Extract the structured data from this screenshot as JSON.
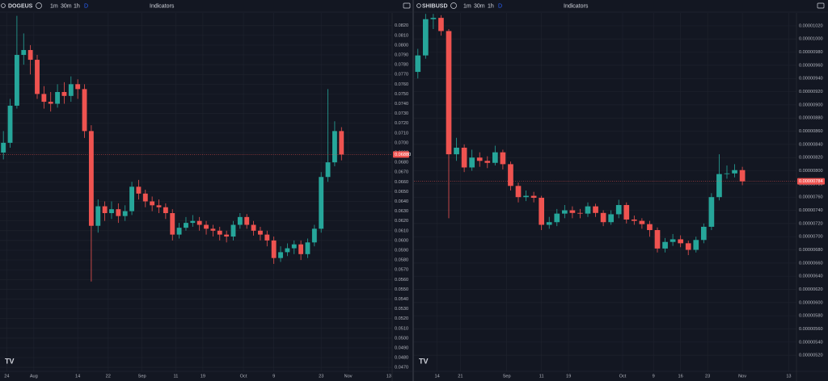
{
  "chart_data": [
    {
      "type": "candlestick",
      "toolbar": {
        "symbol": "DOGEUS",
        "intervals": [
          "1m",
          "30m",
          "1h"
        ],
        "selected": "D",
        "indicators": "Indicators"
      },
      "up_color": "#26a69a",
      "down_color": "#ef5350",
      "grid": true,
      "xlim": [
        -1,
        115
      ],
      "xticks": [
        {
          "value": 1,
          "label": "24"
        },
        {
          "value": 9,
          "label": "Aug"
        },
        {
          "value": 22,
          "label": "14"
        },
        {
          "value": 31,
          "label": "22"
        },
        {
          "value": 41,
          "label": "Sep"
        },
        {
          "value": 51,
          "label": "11"
        },
        {
          "value": 59,
          "label": "19"
        },
        {
          "value": 71,
          "label": "Oct"
        },
        {
          "value": 80,
          "label": "9"
        },
        {
          "value": 94,
          "label": "23"
        },
        {
          "value": 102,
          "label": "Nov"
        },
        {
          "value": 114,
          "label": "13"
        }
      ],
      "ylim": [
        0.0466,
        0.0833
      ],
      "yticks": [
        {
          "value": 0.047,
          "label": "0.0470"
        },
        {
          "value": 0.048,
          "label": "0.0480"
        },
        {
          "value": 0.049,
          "label": "0.0490"
        },
        {
          "value": 0.05,
          "label": "0.0500"
        },
        {
          "value": 0.051,
          "label": "0.0510"
        },
        {
          "value": 0.052,
          "label": "0.0520"
        },
        {
          "value": 0.053,
          "label": "0.0530"
        },
        {
          "value": 0.054,
          "label": "0.0540"
        },
        {
          "value": 0.055,
          "label": "0.0550"
        },
        {
          "value": 0.056,
          "label": "0.0560"
        },
        {
          "value": 0.057,
          "label": "0.0570"
        },
        {
          "value": 0.058,
          "label": "0.0580"
        },
        {
          "value": 0.059,
          "label": "0.0590"
        },
        {
          "value": 0.06,
          "label": "0.0600"
        },
        {
          "value": 0.061,
          "label": "0.0610"
        },
        {
          "value": 0.062,
          "label": "0.0620"
        },
        {
          "value": 0.063,
          "label": "0.0630"
        },
        {
          "value": 0.064,
          "label": "0.0640"
        },
        {
          "value": 0.065,
          "label": "0.0650"
        },
        {
          "value": 0.066,
          "label": "0.0660"
        },
        {
          "value": 0.067,
          "label": "0.0670"
        },
        {
          "value": 0.068,
          "label": "0.0680"
        },
        {
          "value": 0.069,
          "label": "0.0690"
        },
        {
          "value": 0.07,
          "label": "0.0700"
        },
        {
          "value": 0.071,
          "label": "0.0710"
        },
        {
          "value": 0.072,
          "label": "0.0720"
        },
        {
          "value": 0.073,
          "label": "0.0730"
        },
        {
          "value": 0.074,
          "label": "0.0740"
        },
        {
          "value": 0.075,
          "label": "0.0750"
        },
        {
          "value": 0.076,
          "label": "0.0760"
        },
        {
          "value": 0.077,
          "label": "0.0770"
        },
        {
          "value": 0.078,
          "label": "0.0780"
        },
        {
          "value": 0.079,
          "label": "0.0790"
        },
        {
          "value": 0.08,
          "label": "0.0800"
        },
        {
          "value": 0.081,
          "label": "0.0810"
        },
        {
          "value": 0.082,
          "label": "0.0820"
        }
      ],
      "last_price": {
        "value": 0.0688,
        "label": "0.06880"
      },
      "x": [
        0,
        2,
        4,
        6,
        8,
        10,
        12,
        14,
        16,
        18,
        20,
        22,
        24,
        26,
        28,
        30,
        32,
        34,
        36,
        38,
        40,
        42,
        44,
        46,
        48,
        50,
        52,
        54,
        56,
        58,
        60,
        62,
        64,
        66,
        68,
        70,
        72,
        74,
        76,
        78,
        80,
        82,
        84,
        86,
        88,
        90,
        92,
        94,
        96,
        98,
        100
      ],
      "open": [
        0.069,
        0.07,
        0.0738,
        0.079,
        0.0795,
        0.0785,
        0.075,
        0.0742,
        0.074,
        0.0752,
        0.0748,
        0.076,
        0.0755,
        0.0712,
        0.0615,
        0.0635,
        0.0628,
        0.0632,
        0.0625,
        0.063,
        0.0655,
        0.0648,
        0.064,
        0.0636,
        0.0634,
        0.0628,
        0.0606,
        0.0613,
        0.0618,
        0.062,
        0.0616,
        0.0612,
        0.061,
        0.0606,
        0.0604,
        0.0616,
        0.0624,
        0.0616,
        0.061,
        0.0606,
        0.06,
        0.0582,
        0.0588,
        0.0592,
        0.0596,
        0.0586,
        0.0598,
        0.0612,
        0.0665,
        0.068,
        0.0712
      ],
      "high": [
        0.0712,
        0.0745,
        0.083,
        0.0812,
        0.08,
        0.079,
        0.0758,
        0.0752,
        0.076,
        0.0762,
        0.0768,
        0.0765,
        0.076,
        0.0718,
        0.0642,
        0.064,
        0.064,
        0.0638,
        0.0636,
        0.066,
        0.0662,
        0.0652,
        0.0645,
        0.0642,
        0.0638,
        0.0632,
        0.0618,
        0.0624,
        0.0626,
        0.0624,
        0.062,
        0.0616,
        0.0614,
        0.061,
        0.062,
        0.0628,
        0.0627,
        0.062,
        0.0614,
        0.061,
        0.0604,
        0.0594,
        0.0597,
        0.06,
        0.06,
        0.0602,
        0.0616,
        0.067,
        0.0755,
        0.0722,
        0.0716
      ],
      "low": [
        0.0683,
        0.0695,
        0.0735,
        0.078,
        0.077,
        0.0745,
        0.0735,
        0.0732,
        0.0736,
        0.074,
        0.0742,
        0.0745,
        0.0705,
        0.0558,
        0.0608,
        0.062,
        0.0622,
        0.0618,
        0.062,
        0.0626,
        0.0642,
        0.0634,
        0.063,
        0.0628,
        0.0622,
        0.06,
        0.0602,
        0.061,
        0.0614,
        0.061,
        0.0606,
        0.0604,
        0.06,
        0.0598,
        0.06,
        0.0612,
        0.0612,
        0.0605,
        0.06,
        0.0594,
        0.0576,
        0.0578,
        0.0584,
        0.0586,
        0.058,
        0.0582,
        0.0594,
        0.0608,
        0.066,
        0.0676,
        0.0682
      ],
      "close": [
        0.07,
        0.0738,
        0.079,
        0.0795,
        0.0785,
        0.075,
        0.0742,
        0.074,
        0.0752,
        0.0748,
        0.076,
        0.0755,
        0.0712,
        0.0615,
        0.0635,
        0.0628,
        0.0632,
        0.0625,
        0.063,
        0.0655,
        0.0648,
        0.064,
        0.0636,
        0.0634,
        0.0628,
        0.0606,
        0.0613,
        0.0618,
        0.062,
        0.0616,
        0.0612,
        0.061,
        0.0606,
        0.0604,
        0.0616,
        0.0624,
        0.0616,
        0.061,
        0.0606,
        0.06,
        0.0582,
        0.0588,
        0.0592,
        0.0596,
        0.0586,
        0.0598,
        0.0612,
        0.0665,
        0.068,
        0.0712,
        0.0688
      ]
    },
    {
      "type": "candlestick",
      "toolbar": {
        "symbol": "SHIBUSD",
        "intervals": [
          "1m",
          "30m",
          "1h"
        ],
        "selected": "D",
        "indicators": "Indicators"
      },
      "up_color": "#26a69a",
      "down_color": "#ef5350",
      "grid": true,
      "xlim": [
        -1,
        98
      ],
      "xticks": [
        {
          "value": 5,
          "label": "14"
        },
        {
          "value": 11,
          "label": "21"
        },
        {
          "value": 23,
          "label": "Sep"
        },
        {
          "value": 32,
          "label": "11"
        },
        {
          "value": 39,
          "label": "19"
        },
        {
          "value": 53,
          "label": "Oct"
        },
        {
          "value": 61,
          "label": "9"
        },
        {
          "value": 68,
          "label": "16"
        },
        {
          "value": 75,
          "label": "23"
        },
        {
          "value": 84,
          "label": "Nov"
        },
        {
          "value": 96,
          "label": "13"
        }
      ],
      "ylim": [
        4.957e-06,
        1.0395e-05
      ],
      "yticks": [
        {
          "value": 5.2e-06,
          "label": "0.00000520"
        },
        {
          "value": 5.4e-06,
          "label": "0.00000540"
        },
        {
          "value": 5.6e-06,
          "label": "0.00000560"
        },
        {
          "value": 5.8e-06,
          "label": "0.00000580"
        },
        {
          "value": 6e-06,
          "label": "0.00000600"
        },
        {
          "value": 6.2e-06,
          "label": "0.00000620"
        },
        {
          "value": 6.4e-06,
          "label": "0.00000640"
        },
        {
          "value": 6.6e-06,
          "label": "0.00000660"
        },
        {
          "value": 6.8e-06,
          "label": "0.00000680"
        },
        {
          "value": 7e-06,
          "label": "0.00000700"
        },
        {
          "value": 7.2e-06,
          "label": "0.00000720"
        },
        {
          "value": 7.4e-06,
          "label": "0.00000740"
        },
        {
          "value": 7.6e-06,
          "label": "0.00000760"
        },
        {
          "value": 7.8e-06,
          "label": "0.00000780"
        },
        {
          "value": 8e-06,
          "label": "0.00000800"
        },
        {
          "value": 8.2e-06,
          "label": "0.00000820"
        },
        {
          "value": 8.4e-06,
          "label": "0.00000840"
        },
        {
          "value": 8.6e-06,
          "label": "0.00000860"
        },
        {
          "value": 8.8e-06,
          "label": "0.00000880"
        },
        {
          "value": 9e-06,
          "label": "0.00000900"
        },
        {
          "value": 9.2e-06,
          "label": "0.00000920"
        },
        {
          "value": 9.4e-06,
          "label": "0.00000940"
        },
        {
          "value": 9.6e-06,
          "label": "0.00000960"
        },
        {
          "value": 9.8e-06,
          "label": "0.00000980"
        },
        {
          "value": 1e-05,
          "label": "0.00001000"
        },
        {
          "value": 1.02e-05,
          "label": "0.00001020"
        }
      ],
      "last_price": {
        "value": 7.84e-06,
        "label": "0.00000784"
      },
      "x": [
        0,
        2,
        4,
        6,
        8,
        10,
        12,
        14,
        16,
        18,
        20,
        22,
        24,
        26,
        28,
        30,
        32,
        34,
        36,
        38,
        40,
        42,
        44,
        46,
        48,
        50,
        52,
        54,
        56,
        58,
        60,
        62,
        64,
        66,
        68,
        70,
        72,
        74,
        76,
        78,
        80,
        82,
        84
      ],
      "open": [
        9.5e-06,
        9.75e-06,
        1.03e-05,
        1.032e-05,
        1.012e-05,
        8.25e-06,
        8.35e-06,
        8.05e-06,
        8.2e-06,
        8.15e-06,
        8.12e-06,
        8.28e-06,
        8.1e-06,
        7.77e-06,
        7.6e-06,
        7.62e-06,
        7.59e-06,
        7.18e-06,
        7.22e-06,
        7.35e-06,
        7.4e-06,
        7.36e-06,
        7.35e-06,
        7.46e-06,
        7.36e-06,
        7.22e-06,
        7.34e-06,
        7.48e-06,
        7.26e-06,
        7.24e-06,
        7.19e-06,
        7.1e-06,
        6.82e-06,
        6.92e-06,
        6.96e-06,
        6.9e-06,
        6.8e-06,
        6.95e-06,
        7.15e-06,
        7.6e-06,
        7.95e-06,
        7.96e-06,
        8.01e-06
      ],
      "high": [
        9.85e-06,
        1.038e-05,
        1.038e-05,
        1.036e-05,
        1.015e-05,
        8.5e-06,
        8.4e-06,
        8.32e-06,
        8.28e-06,
        8.22e-06,
        8.38e-06,
        8.32e-06,
        8.14e-06,
        7.82e-06,
        7.7e-06,
        7.68e-06,
        7.62e-06,
        7.3e-06,
        7.42e-06,
        7.48e-06,
        7.46e-06,
        7.42e-06,
        7.52e-06,
        7.5e-06,
        7.4e-06,
        7.4e-06,
        7.56e-06,
        7.52e-06,
        7.32e-06,
        7.28e-06,
        7.24e-06,
        7.14e-06,
        6.98e-06,
        7.04e-06,
        7.02e-06,
        6.94e-06,
        7e-06,
        7.2e-06,
        7.66e-06,
        8.25e-06,
        8.08e-06,
        8.1e-06,
        8.06e-06
      ],
      "low": [
        9.4e-06,
        9.7e-06,
        1.015e-05,
        1.005e-05,
        7.28e-06,
        8.15e-06,
        7.98e-06,
        8e-06,
        8.06e-06,
        8.04e-06,
        8.08e-06,
        8.02e-06,
        7.7e-06,
        7.52e-06,
        7.54e-06,
        7.52e-06,
        7.1e-06,
        7.12e-06,
        7.16e-06,
        7.28e-06,
        7.28e-06,
        7.28e-06,
        7.3e-06,
        7.3e-06,
        7.16e-06,
        7.18e-06,
        7.28e-06,
        7.2e-06,
        7.18e-06,
        7.12e-06,
        7e-06,
        6.76e-06,
        6.76e-06,
        6.86e-06,
        6.84e-06,
        6.72e-06,
        6.76e-06,
        6.9e-06,
        7.1e-06,
        7.55e-06,
        7.88e-06,
        7.9e-06,
        7.78e-06
      ],
      "close": [
        9.75e-06,
        1.03e-05,
        1.032e-05,
        1.012e-05,
        8.25e-06,
        8.35e-06,
        8.05e-06,
        8.2e-06,
        8.15e-06,
        8.12e-06,
        8.28e-06,
        8.1e-06,
        7.77e-06,
        7.6e-06,
        7.62e-06,
        7.59e-06,
        7.18e-06,
        7.22e-06,
        7.35e-06,
        7.4e-06,
        7.36e-06,
        7.35e-06,
        7.46e-06,
        7.36e-06,
        7.22e-06,
        7.34e-06,
        7.48e-06,
        7.26e-06,
        7.24e-06,
        7.19e-06,
        7.1e-06,
        6.82e-06,
        6.92e-06,
        6.96e-06,
        6.9e-06,
        6.8e-06,
        6.95e-06,
        7.15e-06,
        7.6e-06,
        7.95e-06,
        7.96e-06,
        8.01e-06,
        7.84e-06
      ]
    }
  ]
}
